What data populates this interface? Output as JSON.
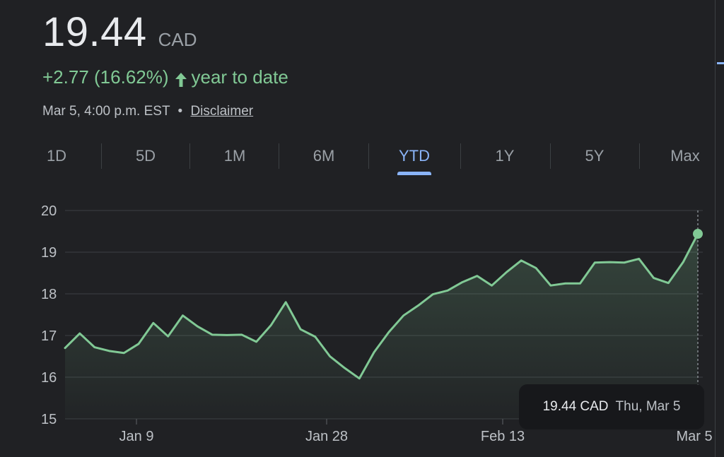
{
  "quote": {
    "price": "19.44",
    "currency": "CAD",
    "change": "+2.77 (16.62%)",
    "period_label": "year to date",
    "timestamp": "Mar 5, 4:00 p.m. EST",
    "separator": "•",
    "disclaimer_link": "Disclaimer"
  },
  "colors": {
    "background": "#202124",
    "positive": "#81c995",
    "accent": "#8ab4f8",
    "grid": "#3c4043"
  },
  "tabs": [
    {
      "label": "1D"
    },
    {
      "label": "5D"
    },
    {
      "label": "1M"
    },
    {
      "label": "6M"
    },
    {
      "label": "YTD",
      "active": true
    },
    {
      "label": "1Y"
    },
    {
      "label": "5Y"
    },
    {
      "label": "Max"
    }
  ],
  "tooltip": {
    "value": "19.44 CAD",
    "date": "Thu, Mar 5"
  },
  "chart_data": {
    "type": "area",
    "title": "",
    "xlabel": "",
    "ylabel": "",
    "ylim": [
      15,
      20
    ],
    "yticks": [
      "15",
      "16",
      "17",
      "18",
      "19",
      "20"
    ],
    "xtick_labels": [
      "Jan 9",
      "Jan 28",
      "Feb 13",
      "Mar 5"
    ],
    "grid": true,
    "series": [
      {
        "values": [
          16.7,
          17.05,
          16.72,
          16.63,
          16.58,
          16.8,
          17.3,
          16.98,
          17.48,
          17.22,
          17.02,
          17.01,
          17.02,
          16.85,
          17.25,
          17.8,
          17.15,
          16.97,
          16.5,
          16.22,
          15.97,
          16.6,
          17.08,
          17.48,
          17.72,
          17.99,
          18.08,
          18.28,
          18.43,
          18.2,
          18.52,
          18.8,
          18.62,
          18.2,
          18.25,
          18.25,
          18.75,
          18.76,
          18.75,
          18.84,
          18.38,
          18.26,
          18.76,
          19.44
        ]
      }
    ],
    "highlight": {
      "label": "Mar 5",
      "value": 19.44
    }
  }
}
